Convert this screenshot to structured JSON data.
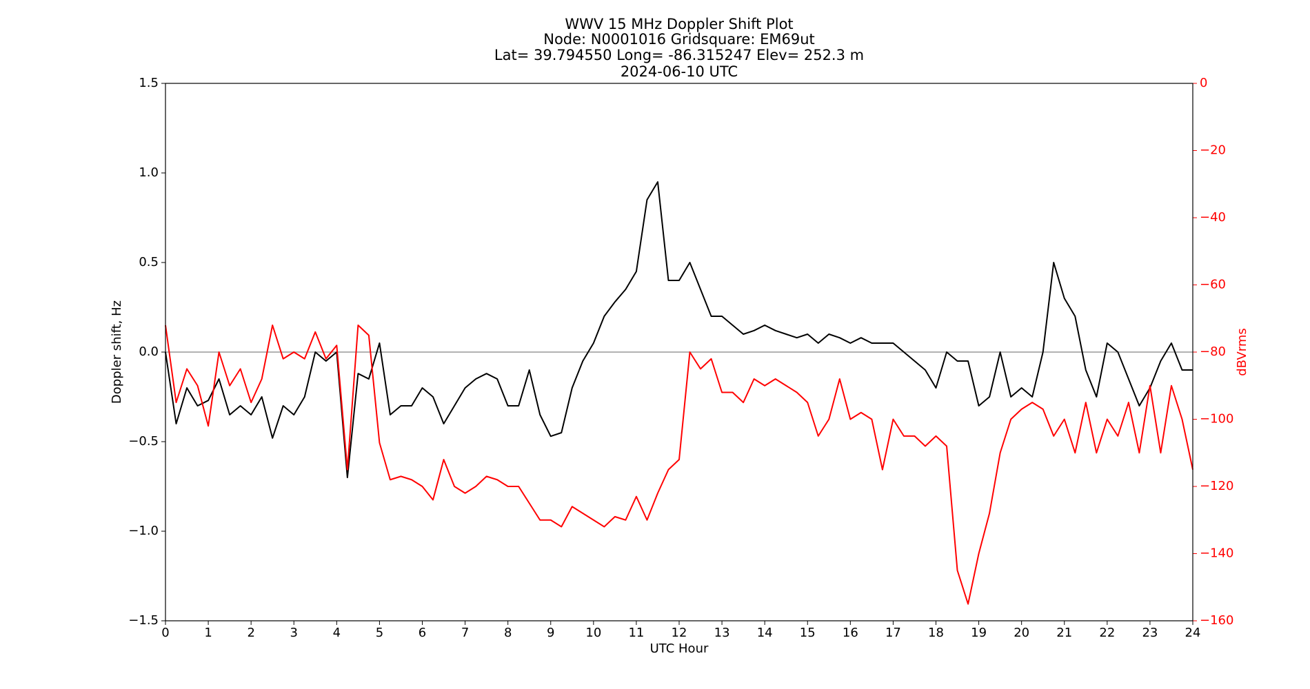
{
  "chart_data": {
    "type": "line",
    "title": [
      "WWV 15 MHz Doppler Shift Plot",
      "Node:  N0001016     Gridsquare:  EM69ut",
      "Lat= 39.794550    Long= -86.315247    Elev= 252.3 m",
      "2024-06-10  UTC"
    ],
    "x_label": "UTC Hour",
    "y_label": "Doppler shift, Hz",
    "y2_label": "dBVrms",
    "xlim": [
      0,
      24
    ],
    "xticks": [
      0,
      1,
      2,
      3,
      4,
      5,
      6,
      7,
      8,
      9,
      10,
      11,
      12,
      13,
      14,
      15,
      16,
      17,
      18,
      19,
      20,
      21,
      22,
      23,
      24
    ],
    "ylim": [
      -1.5,
      1.5
    ],
    "yticks": [
      {
        "value": -1.5,
        "label": "−1.5"
      },
      {
        "value": -1.0,
        "label": "−1.0"
      },
      {
        "value": -0.5,
        "label": "−0.5"
      },
      {
        "value": 0,
        "label": "0.0"
      },
      {
        "value": 0.5,
        "label": "0.5"
      },
      {
        "value": 1.0,
        "label": "1.0"
      },
      {
        "value": 1.5,
        "label": "1.5"
      }
    ],
    "y2lim": [
      -160,
      0
    ],
    "y2ticks": [
      {
        "value": -160,
        "label": "−160"
      },
      {
        "value": -140,
        "label": "−140"
      },
      {
        "value": -120,
        "label": "−120"
      },
      {
        "value": -100,
        "label": "−100"
      },
      {
        "value": -80,
        "label": "−80"
      },
      {
        "value": -60,
        "label": "−60"
      },
      {
        "value": -40,
        "label": "−40"
      },
      {
        "value": -20,
        "label": "−20"
      },
      0
    ],
    "y2_color": "#ff0000",
    "reference_line": 0,
    "x": [
      0,
      0.25,
      0.5,
      0.75,
      1,
      1.25,
      1.5,
      1.75,
      2,
      2.25,
      2.5,
      2.75,
      3,
      3.25,
      3.5,
      3.75,
      4,
      4.25,
      4.5,
      4.75,
      5,
      5.25,
      5.5,
      5.75,
      6,
      6.25,
      6.5,
      6.75,
      7,
      7.25,
      7.5,
      7.75,
      8,
      8.25,
      8.5,
      8.75,
      9,
      9.25,
      9.5,
      9.75,
      10,
      10.25,
      10.5,
      10.75,
      11,
      11.25,
      11.5,
      11.75,
      12,
      12.25,
      12.5,
      12.75,
      13,
      13.25,
      13.5,
      13.75,
      14,
      14.25,
      14.5,
      14.75,
      15,
      15.25,
      15.5,
      15.75,
      16,
      16.25,
      16.5,
      16.75,
      17,
      17.25,
      17.5,
      17.75,
      18,
      18.25,
      18.5,
      18.75,
      19,
      19.25,
      19.5,
      19.75,
      20,
      20.25,
      20.5,
      20.75,
      21,
      21.25,
      21.5,
      21.75,
      22,
      22.25,
      22.5,
      22.75,
      23,
      23.25,
      23.5,
      23.75,
      24
    ],
    "series": [
      {
        "name": "Doppler shift",
        "color": "#000000",
        "axis": "y",
        "values": [
          0.0,
          -0.4,
          -0.2,
          -0.3,
          -0.27,
          -0.15,
          -0.35,
          -0.3,
          -0.35,
          -0.25,
          -0.48,
          -0.3,
          -0.35,
          -0.25,
          0.0,
          -0.05,
          0.0,
          -0.7,
          -0.12,
          -0.15,
          0.05,
          -0.35,
          -0.3,
          -0.3,
          -0.2,
          -0.25,
          -0.4,
          -0.3,
          -0.2,
          -0.15,
          -0.12,
          -0.15,
          -0.3,
          -0.3,
          -0.1,
          -0.35,
          -0.47,
          -0.45,
          -0.2,
          -0.05,
          0.05,
          0.2,
          0.28,
          0.35,
          0.45,
          0.85,
          0.95,
          0.4,
          0.4,
          0.5,
          0.35,
          0.2,
          0.2,
          0.15,
          0.1,
          0.12,
          0.15,
          0.12,
          0.1,
          0.08,
          0.1,
          0.05,
          0.1,
          0.08,
          0.05,
          0.08,
          0.05,
          0.05,
          0.05,
          0.0,
          -0.05,
          -0.1,
          -0.2,
          0.0,
          -0.05,
          -0.05,
          -0.3,
          -0.25,
          0.0,
          -0.25,
          -0.2,
          -0.25,
          0.0,
          0.5,
          0.3,
          0.2,
          -0.1,
          -0.25,
          0.05,
          0.0,
          -0.15,
          -0.3,
          -0.2,
          -0.05,
          0.05,
          -0.1,
          -0.1
        ]
      },
      {
        "name": "dBVrms",
        "color": "#ff0000",
        "axis": "y2",
        "values": [
          -72,
          -95,
          -85,
          -90,
          -102,
          -80,
          -90,
          -85,
          -95,
          -88,
          -72,
          -82,
          -80,
          -82,
          -74,
          -82,
          -78,
          -115,
          -72,
          -75,
          -107,
          -118,
          -117,
          -118,
          -120,
          -124,
          -112,
          -120,
          -122,
          -120,
          -117,
          -118,
          -120,
          -120,
          -125,
          -130,
          -130,
          -132,
          -126,
          -128,
          -130,
          -132,
          -129,
          -130,
          -123,
          -130,
          -122,
          -115,
          -112,
          -80,
          -85,
          -82,
          -92,
          -92,
          -95,
          -88,
          -90,
          -88,
          -90,
          -92,
          -95,
          -105,
          -100,
          -88,
          -100,
          -98,
          -100,
          -115,
          -100,
          -105,
          -105,
          -108,
          -105,
          -108,
          -145,
          -155,
          -140,
          -128,
          -110,
          -100,
          -97,
          -95,
          -97,
          -105,
          -100,
          -110,
          -95,
          -110,
          -100,
          -105,
          -95,
          -110,
          -90,
          -110,
          -90,
          -100,
          -115
        ]
      }
    ]
  }
}
